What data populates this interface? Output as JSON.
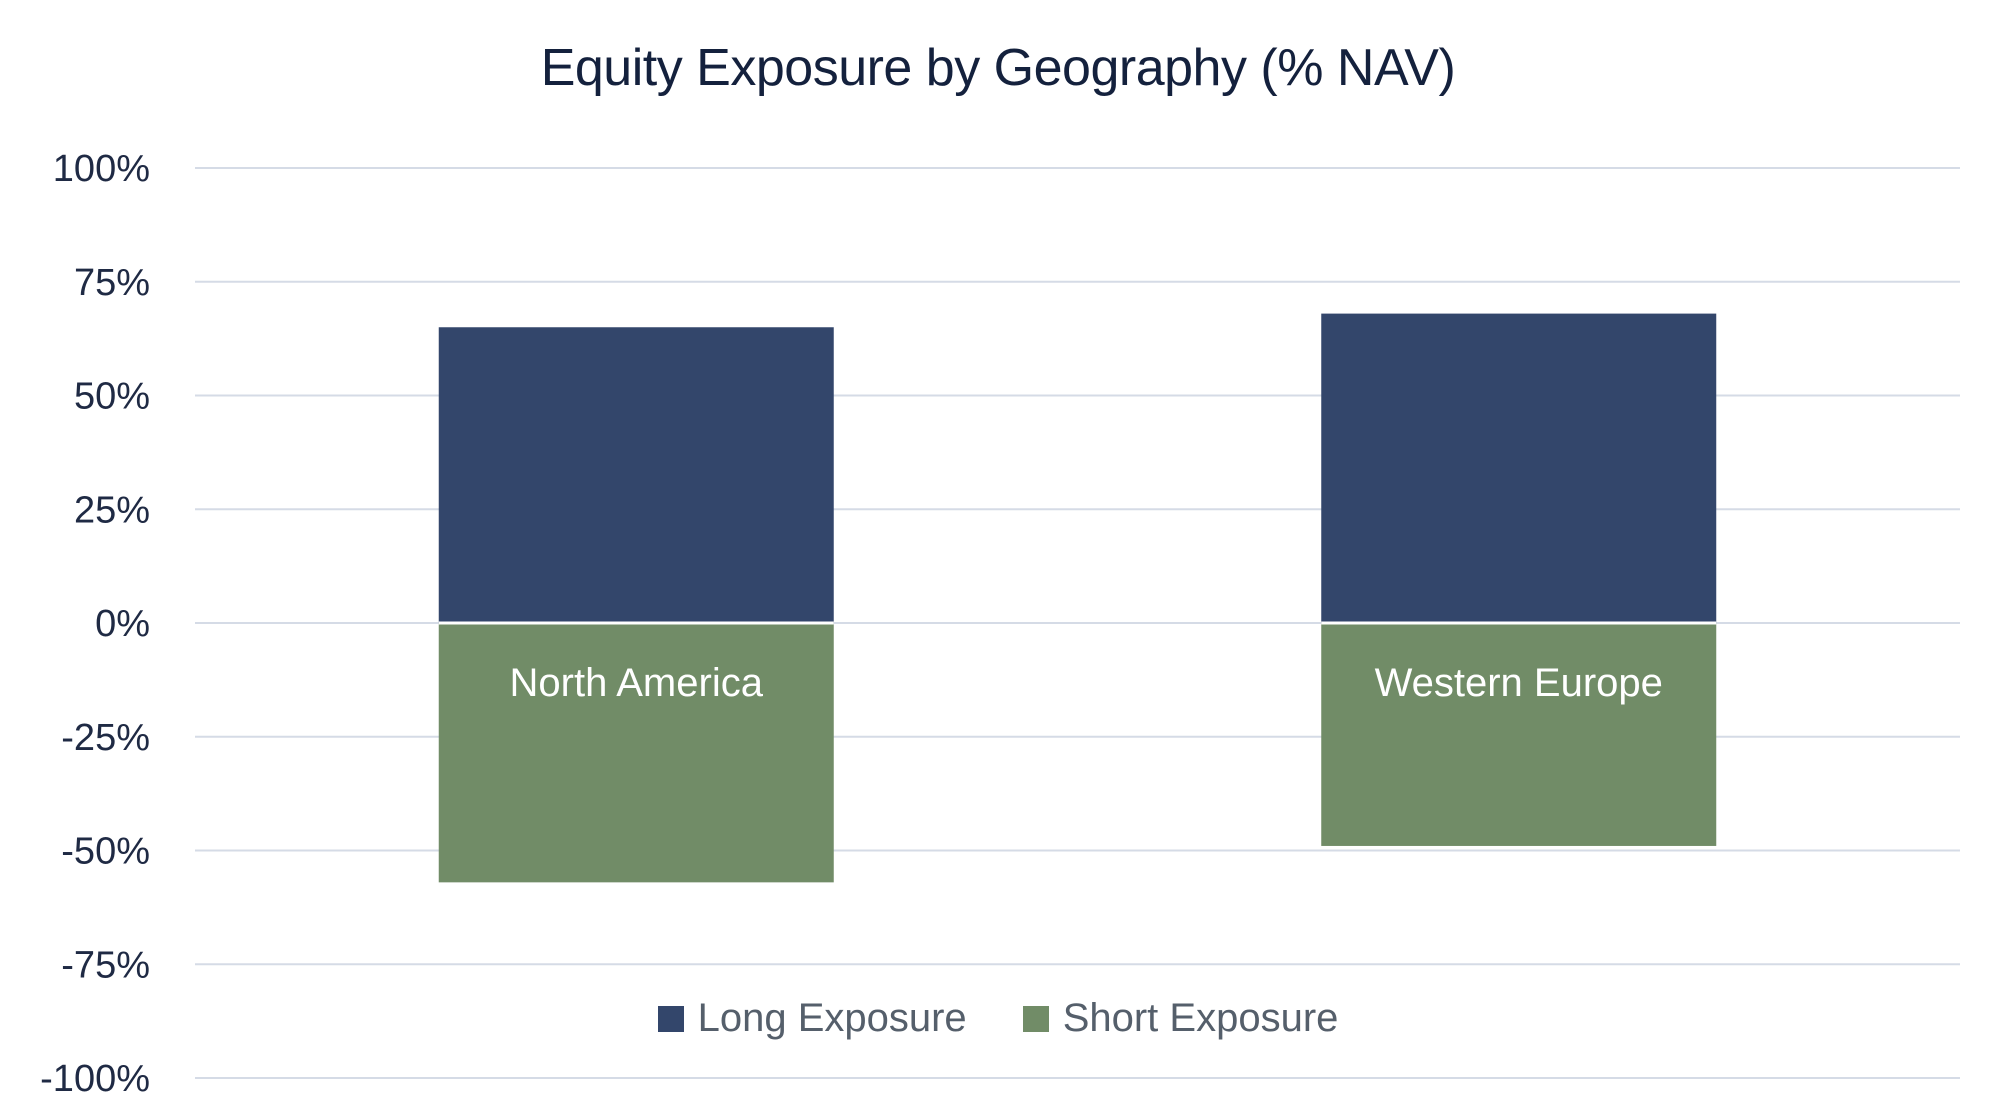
{
  "chart_data": {
    "type": "bar",
    "stacked": true,
    "title": "Equity Exposure by Geography (% NAV)",
    "xlabel": "",
    "ylabel": "",
    "categories": [
      "North America",
      "Western Europe"
    ],
    "series": [
      {
        "name": "Long Exposure",
        "values": [
          65,
          68
        ],
        "color": "#33466b"
      },
      {
        "name": "Short Exposure",
        "values": [
          -57,
          -49
        ],
        "color": "#718c67"
      }
    ],
    "ylim": [
      -100,
      100
    ],
    "yticks": [
      100,
      75,
      50,
      25,
      0,
      -25,
      -50,
      -75,
      -100
    ],
    "ytick_labels": [
      "100%",
      "75%",
      "50%",
      "25%",
      "0%",
      "-25%",
      "-50%",
      "-75%",
      "-100%"
    ],
    "category_labels_position": "inside below zero line",
    "grid": true,
    "gridline_color": "#d5dbe6",
    "legend_position": "bottom-center"
  }
}
